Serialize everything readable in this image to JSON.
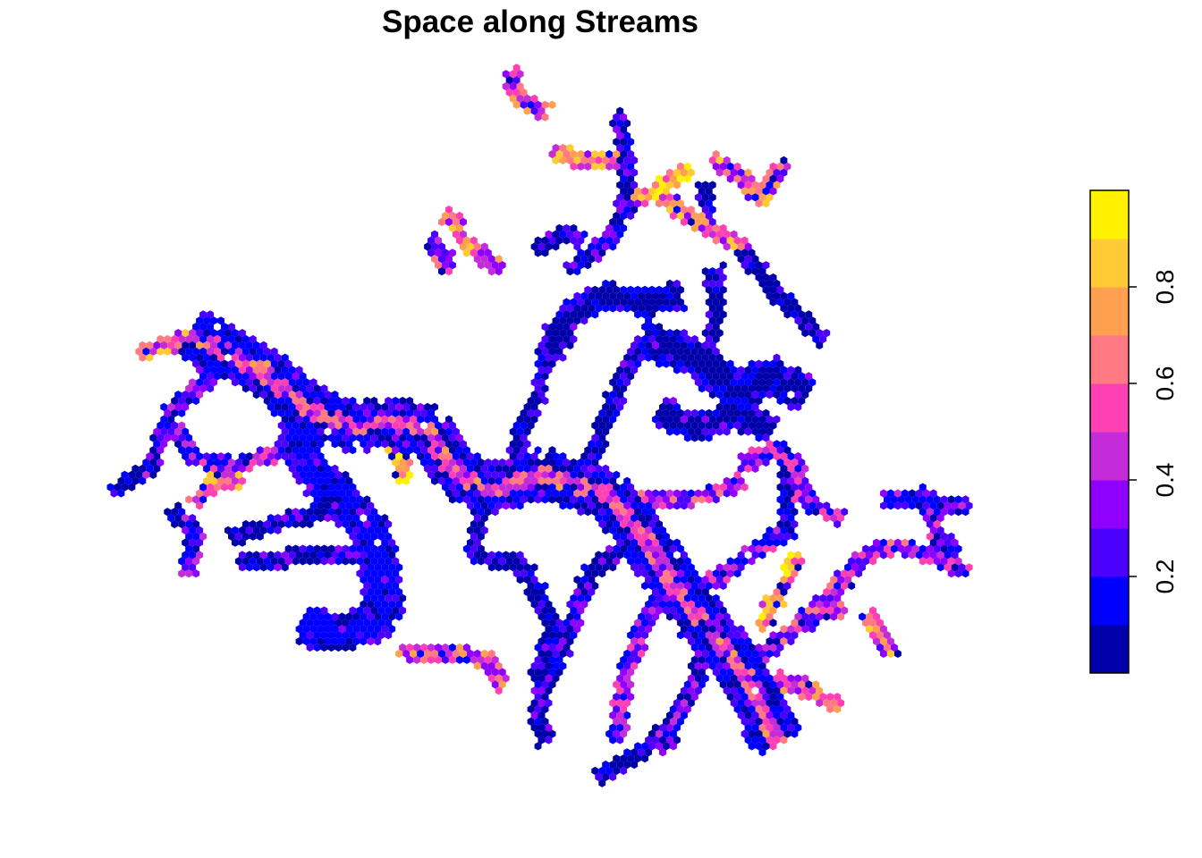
{
  "chart_data": {
    "type": "heatmap",
    "title": "Space along Streams",
    "xlabel": "",
    "ylabel": "",
    "grid": false,
    "legend": {
      "placement": "right",
      "type": "colorbar",
      "range": [
        0,
        1
      ],
      "ticks": [
        0.2,
        0.4,
        0.6,
        0.8
      ],
      "tick_labels": [
        "0.2",
        "0.4",
        "0.6",
        "0.8"
      ],
      "bin_breaks": [
        0,
        0.1,
        0.2,
        0.3,
        0.4,
        0.5,
        0.6,
        0.7,
        0.8,
        0.9,
        1.0
      ],
      "colors": [
        "#0000AA",
        "#0000FF",
        "#4B00FF",
        "#8F00FF",
        "#C42BD9",
        "#FF40B4",
        "#FF7A82",
        "#FFA050",
        "#FFCA33",
        "#FFF100"
      ]
    },
    "colormap": "plasma-like: low values dark blue, mid values magenta/pink, high values yellow",
    "streams": [
      {
        "name": "",
        "path": [
          [
            215,
            375
          ],
          [
            300,
            420
          ],
          [
            340,
            455
          ],
          [
            400,
            480
          ],
          [
            430,
            470
          ],
          [
            480,
            480
          ],
          [
            500,
            520
          ],
          [
            540,
            550
          ],
          [
            610,
            530
          ],
          [
            680,
            555
          ],
          [
            720,
            600
          ],
          [
            750,
            650
          ],
          [
            790,
            700
          ],
          [
            830,
            750
          ],
          [
            870,
            830
          ]
        ],
        "width": 4,
        "level": 0.55
      },
      {
        "name": "",
        "path": [
          [
            215,
            375
          ],
          [
            190,
            385
          ],
          [
            160,
            395
          ]
        ],
        "width": 1,
        "level": 0.6
      },
      {
        "name": "",
        "path": [
          [
            330,
            430
          ],
          [
            340,
            520
          ],
          [
            380,
            555
          ],
          [
            420,
            600
          ],
          [
            430,
            690
          ],
          [
            380,
            710
          ],
          [
            340,
            700
          ]
        ],
        "width": 3,
        "level": 0.15
      },
      {
        "name": "",
        "path": [
          [
            430,
            480
          ],
          [
            450,
            510
          ],
          [
            450,
            540
          ]
        ],
        "width": 1,
        "level": 0.9
      },
      {
        "name": "",
        "path": [
          [
            230,
            380
          ],
          [
            230,
            430
          ],
          [
            190,
            460
          ],
          [
            170,
            520
          ],
          [
            130,
            550
          ]
        ],
        "width": 1,
        "level": 0.2
      },
      {
        "name": "",
        "path": [
          [
            200,
            480
          ],
          [
            210,
            510
          ],
          [
            260,
            520
          ],
          [
            300,
            510
          ],
          [
            330,
            490
          ]
        ],
        "width": 1,
        "level": 0.3
      },
      {
        "name": "",
        "path": [
          [
            220,
            560
          ],
          [
            240,
            540
          ],
          [
            270,
            540
          ]
        ],
        "width": 1,
        "level": 0.65
      },
      {
        "name": "",
        "path": [
          [
            190,
            570
          ],
          [
            220,
            600
          ],
          [
            210,
            640
          ]
        ],
        "width": 1,
        "level": 0.25
      },
      {
        "name": "",
        "path": [
          [
            260,
            600
          ],
          [
            330,
            580
          ],
          [
            380,
            570
          ]
        ],
        "width": 1,
        "level": 0.1
      },
      {
        "name": "",
        "path": [
          [
            270,
            630
          ],
          [
            350,
            620
          ],
          [
            410,
            620
          ]
        ],
        "width": 1,
        "level": 0.1
      },
      {
        "name": "",
        "path": [
          [
            450,
            730
          ],
          [
            510,
            730
          ],
          [
            550,
            740
          ],
          [
            560,
            770
          ]
        ],
        "width": 1,
        "level": 0.55
      },
      {
        "name": "",
        "path": [
          [
            540,
            550
          ],
          [
            530,
            620
          ],
          [
            580,
            630
          ],
          [
            600,
            660
          ],
          [
            620,
            700
          ],
          [
            600,
            760
          ]
        ],
        "width": 1,
        "level": 0.05
      },
      {
        "name": "",
        "path": [
          [
            580,
            530
          ],
          [
            580,
            480
          ],
          [
            600,
            450
          ],
          [
            610,
            400
          ]
        ],
        "width": 1,
        "level": 0.05
      },
      {
        "name": "",
        "path": [
          [
            610,
            400
          ],
          [
            640,
            350
          ],
          [
            680,
            330
          ],
          [
            720,
            340
          ],
          [
            760,
            330
          ]
        ],
        "width": 2,
        "level": 0.05
      },
      {
        "name": "",
        "path": [
          [
            660,
            520
          ],
          [
            680,
            460
          ],
          [
            700,
            420
          ],
          [
            720,
            380
          ]
        ],
        "width": 1,
        "level": 0.05
      },
      {
        "name": "",
        "path": [
          [
            720,
            380
          ],
          [
            780,
            400
          ],
          [
            820,
            440
          ],
          [
            860,
            420
          ],
          [
            900,
            440
          ]
        ],
        "width": 3,
        "level": 0.05
      },
      {
        "name": "",
        "path": [
          [
            740,
            460
          ],
          [
            780,
            480
          ],
          [
            820,
            460
          ],
          [
            860,
            480
          ]
        ],
        "width": 2,
        "level": 0.05
      },
      {
        "name": "",
        "path": [
          [
            800,
            300
          ],
          [
            800,
            360
          ],
          [
            790,
            400
          ]
        ],
        "width": 1,
        "level": 0.05
      },
      {
        "name": "",
        "path": [
          [
            830,
            280
          ],
          [
            860,
            320
          ],
          [
            900,
            360
          ],
          [
            920,
            380
          ]
        ],
        "width": 1,
        "level": 0.05
      },
      {
        "name": "",
        "path": [
          [
            640,
            300
          ],
          [
            680,
            270
          ],
          [
            700,
            230
          ],
          [
            700,
            160
          ],
          [
            690,
            130
          ]
        ],
        "width": 1,
        "level": 0.1
      },
      {
        "name": "",
        "path": [
          [
            700,
            230
          ],
          [
            740,
            210
          ],
          [
            770,
            190
          ]
        ],
        "width": 1,
        "level": 0.75
      },
      {
        "name": "",
        "path": [
          [
            620,
            170
          ],
          [
            660,
            180
          ],
          [
            700,
            180
          ]
        ],
        "width": 1,
        "level": 0.65
      },
      {
        "name": "",
        "path": [
          [
            740,
            220
          ],
          [
            780,
            250
          ],
          [
            820,
            270
          ],
          [
            840,
            290
          ]
        ],
        "width": 1,
        "level": 0.6
      },
      {
        "name": "",
        "path": [
          [
            790,
            210
          ],
          [
            790,
            260
          ]
        ],
        "width": 1,
        "level": 0.05
      },
      {
        "name": "",
        "path": [
          [
            800,
            180
          ],
          [
            830,
            200
          ],
          [
            850,
            220
          ],
          [
            880,
            180
          ]
        ],
        "width": 1,
        "level": 0.6
      },
      {
        "name": "",
        "path": [
          [
            600,
            280
          ],
          [
            630,
            260
          ],
          [
            650,
            270
          ]
        ],
        "width": 1,
        "level": 0.1
      },
      {
        "name": "",
        "path": [
          [
            500,
            240
          ],
          [
            520,
            270
          ],
          [
            560,
            300
          ]
        ],
        "width": 1,
        "level": 0.6
      },
      {
        "name": "",
        "path": [
          [
            480,
            270
          ],
          [
            500,
            290
          ],
          [
            490,
            300
          ]
        ],
        "width": 1,
        "level": 0.45
      },
      {
        "name": "",
        "path": [
          [
            570,
            80
          ],
          [
            580,
            110
          ],
          [
            610,
            125
          ]
        ],
        "width": 1,
        "level": 0.5
      },
      {
        "name": "",
        "path": [
          [
            720,
            600
          ],
          [
            660,
            640
          ],
          [
            640,
            700
          ],
          [
            600,
            790
          ],
          [
            610,
            830
          ]
        ],
        "width": 1,
        "level": 0.15
      },
      {
        "name": "",
        "path": [
          [
            750,
            650
          ],
          [
            720,
            700
          ],
          [
            700,
            750
          ],
          [
            690,
            830
          ]
        ],
        "width": 1,
        "level": 0.35
      },
      {
        "name": "",
        "path": [
          [
            790,
            700
          ],
          [
            780,
            760
          ],
          [
            760,
            800
          ],
          [
            740,
            840
          ]
        ],
        "width": 1,
        "level": 0.2
      },
      {
        "name": "",
        "path": [
          [
            760,
            800
          ],
          [
            720,
            840
          ],
          [
            670,
            870
          ]
        ],
        "width": 1,
        "level": 0.05
      },
      {
        "name": "",
        "path": [
          [
            750,
            650
          ],
          [
            800,
            650
          ],
          [
            840,
            620
          ],
          [
            870,
            600
          ]
        ],
        "width": 1,
        "level": 0.35
      },
      {
        "name": "",
        "path": [
          [
            720,
            560
          ],
          [
            760,
            560
          ],
          [
            800,
            550
          ],
          [
            830,
            540
          ]
        ],
        "width": 1,
        "level": 0.4
      },
      {
        "name": "",
        "path": [
          [
            830,
            520
          ],
          [
            870,
            500
          ],
          [
            890,
            520
          ],
          [
            900,
            560
          ],
          [
            940,
            580
          ]
        ],
        "width": 1,
        "level": 0.35
      },
      {
        "name": "",
        "path": [
          [
            830,
            750
          ],
          [
            870,
            720
          ],
          [
            900,
            690
          ],
          [
            940,
            680
          ]
        ],
        "width": 1,
        "level": 0.45
      },
      {
        "name": "",
        "path": [
          [
            850,
            700
          ],
          [
            880,
            650
          ],
          [
            890,
            620
          ]
        ],
        "width": 1,
        "level": 0.7
      },
      {
        "name": "",
        "path": [
          [
            900,
            700
          ],
          [
            940,
            650
          ],
          [
            970,
            620
          ],
          [
            1000,
            610
          ],
          [
            1040,
            620
          ],
          [
            1080,
            640
          ]
        ],
        "width": 1,
        "level": 0.4
      },
      {
        "name": "",
        "path": [
          [
            990,
            560
          ],
          [
            1040,
            560
          ],
          [
            1080,
            570
          ]
        ],
        "width": 1,
        "level": 0.25
      },
      {
        "name": "",
        "path": [
          [
            1030,
            550
          ],
          [
            1050,
            600
          ],
          [
            1070,
            620
          ]
        ],
        "width": 1,
        "level": 0.3
      },
      {
        "name": "",
        "path": [
          [
            970,
            690
          ],
          [
            990,
            720
          ],
          [
            1000,
            730
          ]
        ],
        "width": 1,
        "level": 0.6
      },
      {
        "name": "",
        "path": [
          [
            880,
            600
          ],
          [
            880,
            560
          ],
          [
            880,
            520
          ]
        ],
        "width": 1,
        "level": 0.05
      },
      {
        "name": "",
        "path": [
          [
            870,
            760
          ],
          [
            900,
            770
          ],
          [
            940,
            790
          ]
        ],
        "width": 1,
        "level": 0.55
      }
    ]
  }
}
